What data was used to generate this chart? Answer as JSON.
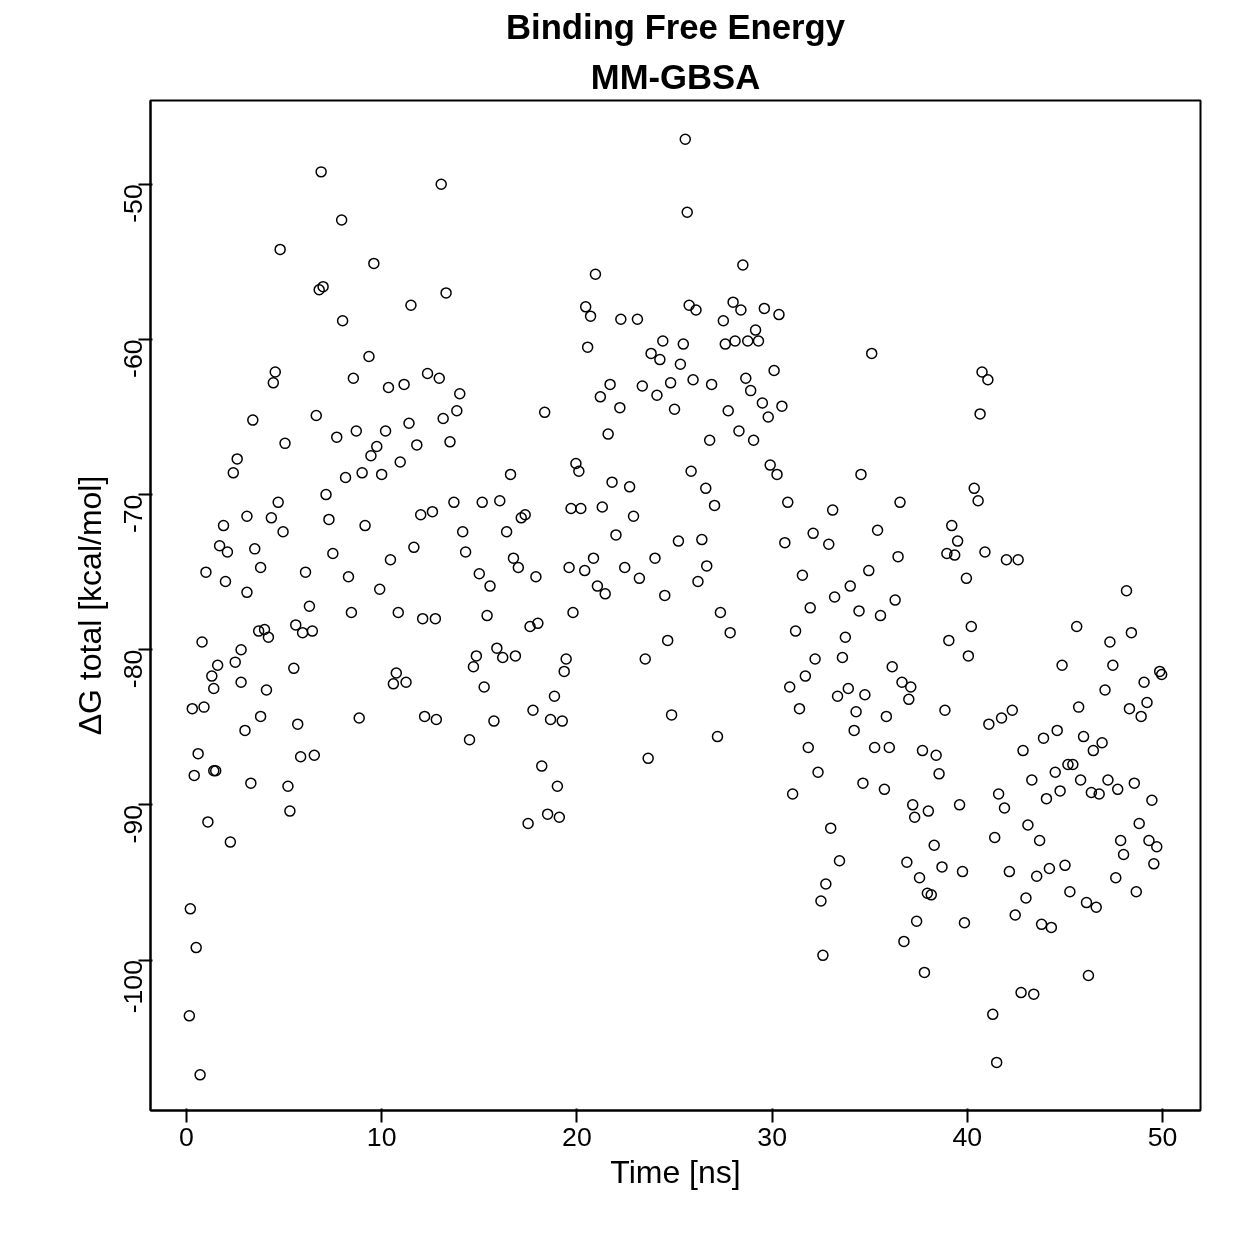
{
  "chart_data": {
    "type": "scatter",
    "title": "Binding Free Energy",
    "subtitle": "MM-GBSA",
    "xlabel": "Time [ns]",
    "ylabel": "ΔG total [kcal/mol]",
    "xlim": [
      -1.84,
      51.94
    ],
    "ylim": [
      -109.7,
      -44.6
    ],
    "xticks": [
      0,
      10,
      20,
      30,
      40,
      50
    ],
    "yticks": [
      -50,
      -60,
      -70,
      -80,
      -90,
      -100
    ],
    "grid": false,
    "marker": "circle",
    "series": [
      {
        "color": "#000000",
        "x": [
          0.15,
          0.2,
          0.5,
          0.7,
          0.3,
          0.4,
          0.6,
          0.8,
          0.9,
          1.0,
          1.1,
          1.3,
          1.4,
          1.4,
          1.5,
          1.6,
          1.7,
          1.9,
          2.0,
          2.1,
          2.25,
          2.4,
          2.5,
          2.6,
          2.8,
          2.8,
          3.0,
          3.1,
          3.1,
          3.3,
          3.4,
          3.5,
          3.7,
          3.8,
          3.8,
          4.0,
          4.1,
          4.2,
          4.35,
          4.45,
          4.55,
          4.7,
          4.8,
          4.95,
          5.05,
          5.2,
          5.3,
          5.5,
          5.6,
          5.7,
          5.85,
          5.95,
          6.1,
          6.3,
          6.45,
          6.55,
          6.65,
          6.8,
          6.9,
          7.0,
          7.15,
          7.3,
          7.5,
          7.7,
          7.95,
          8.0,
          8.15,
          8.3,
          8.45,
          8.55,
          8.7,
          8.85,
          9.0,
          9.15,
          9.35,
          9.45,
          9.6,
          9.75,
          9.9,
          10.0,
          10.2,
          10.35,
          10.45,
          10.6,
          10.75,
          10.85,
          10.95,
          11.15,
          11.25,
          11.4,
          11.5,
          11.65,
          11.8,
          12.0,
          12.1,
          12.2,
          12.35,
          12.6,
          12.75,
          12.8,
          12.95,
          13.05,
          13.15,
          13.3,
          13.5,
          13.7,
          13.85,
          14.0,
          14.15,
          14.3,
          14.5,
          14.7,
          14.85,
          15.0,
          15.15,
          15.25,
          15.4,
          15.55,
          15.75,
          15.9,
          16.05,
          16.2,
          16.4,
          16.6,
          16.75,
          16.85,
          17.0,
          17.15,
          17.35,
          17.5,
          17.6,
          17.75,
          17.9,
          18.0,
          18.2,
          18.35,
          18.5,
          18.65,
          18.85,
          19.0,
          19.1,
          19.25,
          19.35,
          19.45,
          19.6,
          19.7,
          19.8,
          19.95,
          20.1,
          20.2,
          20.4,
          20.45,
          20.55,
          20.7,
          20.85,
          20.95,
          21.05,
          21.2,
          21.3,
          21.45,
          21.6,
          21.7,
          21.8,
          22.0,
          22.2,
          22.25,
          22.45,
          22.7,
          22.9,
          23.1,
          23.2,
          23.35,
          23.5,
          23.65,
          23.8,
          24.0,
          24.1,
          24.25,
          24.4,
          24.5,
          24.65,
          24.8,
          24.85,
          25.0,
          25.2,
          25.3,
          25.45,
          25.55,
          25.65,
          25.75,
          25.85,
          25.95,
          26.1,
          26.2,
          26.4,
          26.6,
          26.65,
          26.8,
          26.9,
          27.05,
          27.2,
          27.35,
          27.5,
          27.6,
          27.75,
          27.85,
          28.0,
          28.1,
          28.3,
          28.4,
          28.5,
          28.65,
          28.75,
          28.9,
          29.05,
          29.15,
          29.3,
          29.5,
          29.6,
          29.8,
          29.9,
          30.1,
          30.25,
          30.35,
          30.5,
          30.65,
          30.8,
          30.9,
          31.05,
          31.2,
          31.4,
          31.55,
          31.7,
          31.85,
          31.95,
          32.1,
          32.2,
          32.35,
          32.5,
          32.6,
          32.75,
          32.9,
          33.0,
          33.1,
          33.2,
          33.35,
          33.45,
          33.6,
          33.75,
          33.9,
          34.0,
          34.2,
          34.3,
          34.45,
          34.55,
          34.65,
          34.75,
          34.95,
          35.1,
          35.25,
          35.4,
          35.55,
          35.75,
          35.85,
          36.0,
          36.15,
          36.3,
          36.45,
          36.55,
          36.65,
          36.75,
          36.9,
          37.0,
          37.1,
          37.2,
          37.3,
          37.4,
          37.55,
          37.7,
          37.8,
          37.95,
          38.0,
          38.15,
          38.3,
          38.4,
          38.55,
          38.7,
          38.85,
          38.95,
          39.05,
          39.2,
          39.35,
          39.5,
          39.6,
          39.75,
          39.85,
          39.95,
          40.05,
          40.2,
          40.35,
          40.55,
          40.65,
          40.75,
          40.9,
          41.05,
          41.1,
          41.3,
          41.4,
          41.5,
          41.6,
          41.75,
          41.9,
          42.0,
          42.15,
          42.3,
          42.45,
          42.6,
          42.75,
          42.85,
          43.0,
          43.1,
          43.3,
          43.4,
          43.55,
          43.7,
          43.8,
          43.9,
          44.05,
          44.2,
          44.3,
          44.5,
          44.6,
          44.75,
          44.85,
          45.0,
          45.15,
          45.25,
          45.4,
          45.6,
          45.7,
          45.8,
          45.95,
          46.1,
          46.2,
          46.35,
          46.45,
          46.6,
          46.75,
          46.9,
          47.05,
          47.2,
          47.3,
          47.45,
          47.6,
          47.7,
          47.85,
          48.0,
          48.15,
          48.3,
          48.4,
          48.55,
          48.65,
          48.8,
          48.9,
          49.05,
          49.2,
          49.3,
          49.45,
          49.55,
          49.7,
          49.85,
          49.95
        ],
        "values": [
          -103.6,
          -96.7,
          -99.2,
          -107.4,
          -83.8,
          -88.1,
          -86.7,
          -79.5,
          -83.7,
          -75.0,
          -91.1,
          -81.7,
          -82.5,
          -87.8,
          -87.8,
          -81.0,
          -73.3,
          -72.0,
          -75.6,
          -73.7,
          -92.4,
          -68.6,
          -80.8,
          -67.7,
          -80.0,
          -82.1,
          -85.2,
          -71.4,
          -76.3,
          -88.6,
          -65.2,
          -73.5,
          -78.8,
          -74.7,
          -84.3,
          -78.7,
          -82.6,
          -79.2,
          -71.5,
          -62.8,
          -62.1,
          -70.5,
          -54.2,
          -72.4,
          -66.7,
          -88.8,
          -90.4,
          -81.2,
          -78.4,
          -84.8,
          -86.9,
          -78.9,
          -75.0,
          -77.2,
          -78.8,
          -86.8,
          -64.9,
          -56.8,
          -49.2,
          -56.6,
          -70.0,
          -71.6,
          -73.8,
          -66.3,
          -52.3,
          -58.8,
          -68.9,
          -75.3,
          -77.6,
          -62.5,
          -65.9,
          -84.4,
          -68.6,
          -72.0,
          -61.1,
          -67.5,
          -55.1,
          -66.9,
          -76.1,
          -68.7,
          -65.9,
          -63.1,
          -74.2,
          -82.2,
          -81.5,
          -77.6,
          -67.9,
          -62.9,
          -82.1,
          -65.4,
          -57.8,
          -73.4,
          -66.8,
          -71.3,
          -78.0,
          -84.3,
          -62.2,
          -71.1,
          -78.0,
          -84.5,
          -62.5,
          -50.0,
          -65.1,
          -57.0,
          -66.6,
          -70.5,
          -64.6,
          -63.5,
          -72.4,
          -73.7,
          -85.8,
          -81.1,
          -80.4,
          -75.1,
          -70.5,
          -82.4,
          -77.8,
          -75.9,
          -84.6,
          -79.9,
          -70.4,
          -80.5,
          -72.4,
          -68.7,
          -74.1,
          -80.4,
          -74.7,
          -71.5,
          -71.3,
          -91.2,
          -78.5,
          -83.9,
          -75.3,
          -78.3,
          -87.5,
          -64.7,
          -90.6,
          -84.5,
          -83.0,
          -88.8,
          -90.8,
          -84.6,
          -81.4,
          -80.6,
          -74.7,
          -70.9,
          -77.6,
          -68.0,
          -68.5,
          -70.9,
          -74.9,
          -57.9,
          -60.5,
          -58.5,
          -74.1,
          -55.8,
          -75.9,
          -63.7,
          -70.8,
          -76.4,
          -66.1,
          -62.9,
          -69.2,
          -72.6,
          -64.4,
          -58.7,
          -74.7,
          -69.5,
          -71.4,
          -58.7,
          -75.4,
          -63.0,
          -80.6,
          -87.0,
          -60.9,
          -74.1,
          -63.6,
          -61.3,
          -60.1,
          -76.5,
          -79.4,
          -62.8,
          -84.2,
          -64.5,
          -73.0,
          -61.6,
          -60.3,
          -47.1,
          -51.8,
          -57.8,
          -68.5,
          -62.6,
          -58.1,
          -75.6,
          -72.9,
          -69.6,
          -74.6,
          -66.5,
          -62.9,
          -70.7,
          -85.6,
          -77.6,
          -58.8,
          -60.3,
          -64.6,
          -78.9,
          -57.6,
          -60.1,
          -65.9,
          -58.1,
          -55.2,
          -62.5,
          -60.1,
          -63.3,
          -66.5,
          -59.4,
          -60.1,
          -64.1,
          -58.0,
          -65.0,
          -68.1,
          -62.0,
          -68.7,
          -58.4,
          -64.3,
          -73.1,
          -70.5,
          -82.4,
          -89.3,
          -78.8,
          -83.8,
          -75.2,
          -81.7,
          -86.3,
          -77.3,
          -72.5,
          -80.6,
          -87.9,
          -96.2,
          -99.7,
          -95.1,
          -73.2,
          -91.5,
          -71.0,
          -76.6,
          -83.0,
          -93.6,
          -80.5,
          -79.2,
          -82.5,
          -75.9,
          -85.2,
          -84.0,
          -77.5,
          -68.7,
          -88.6,
          -82.9,
          -74.9,
          -60.9,
          -86.3,
          -72.3,
          -77.8,
          -89.0,
          -84.3,
          -86.3,
          -81.1,
          -76.8,
          -74.0,
          -70.5,
          -82.1,
          -98.8,
          -93.7,
          -83.2,
          -82.4,
          -90.0,
          -90.8,
          -97.5,
          -94.7,
          -86.5,
          -100.8,
          -95.7,
          -90.4,
          -95.8,
          -92.6,
          -86.8,
          -88.0,
          -94.0,
          -83.9,
          -73.8,
          -79.4,
          -72.0,
          -73.9,
          -73.0,
          -90.0,
          -94.3,
          -97.6,
          -75.4,
          -80.4,
          -78.5,
          -69.6,
          -70.4,
          -64.8,
          -62.1,
          -73.7,
          -62.6,
          -84.8,
          -103.5,
          -92.1,
          -106.6,
          -89.3,
          -84.4,
          -90.2,
          -74.2,
          -94.3,
          -83.9,
          -97.1,
          -74.2,
          -102.1,
          -86.5,
          -96.0,
          -91.3,
          -88.4,
          -102.2,
          -94.6,
          -92.3,
          -97.7,
          -85.7,
          -89.6,
          -94.1,
          -97.9,
          -87.9,
          -85.2,
          -89.1,
          -81.0,
          -93.9,
          -87.4,
          -95.6,
          -87.4,
          -78.5,
          -83.7,
          -88.4,
          -85.6,
          -96.3,
          -101.0,
          -89.2,
          -86.5,
          -96.6,
          -89.3,
          -86.0,
          -82.6,
          -88.4,
          -79.5,
          -81.0,
          -94.7,
          -89.0,
          -92.3,
          -93.2,
          -76.2,
          -83.8,
          -78.9,
          -88.6,
          -95.6,
          -91.2,
          -84.3,
          -82.1,
          -83.4,
          -92.3,
          -89.7,
          -93.8,
          -92.7,
          -81.4,
          -81.6
        ]
      }
    ]
  }
}
